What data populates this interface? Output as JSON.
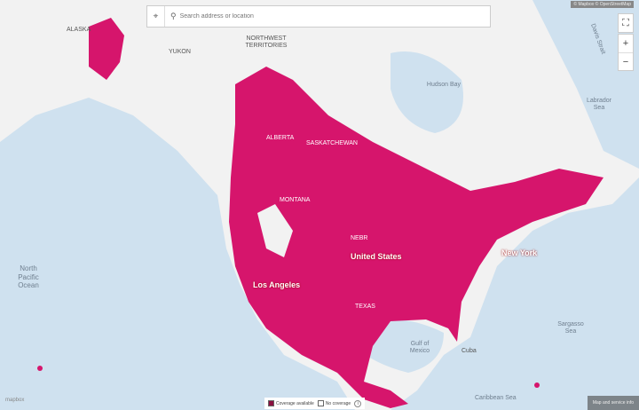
{
  "search": {
    "placeholder": "Search address or location"
  },
  "attribution": "© Mapbox © OpenStreetMap",
  "controls": {
    "fullscreen": "⛶",
    "zoom_in": "+",
    "zoom_out": "−"
  },
  "legend": {
    "coverage": "Coverage available",
    "no_coverage": "No coverage",
    "info_icon": "i"
  },
  "info_button": "Map and service info",
  "logo": "mapbox",
  "colors": {
    "coverage": "#d6156c",
    "ocean": "#cfe1ef",
    "land": "#f2f2f2"
  },
  "labels": {
    "alaska": "ALASKA",
    "yukon": "YUKON",
    "nwt": "NORTHWEST TERRITORIES",
    "alberta": "ALBERTA",
    "saskatchewan": "SASKATCHEWAN",
    "hudson": "Hudson Bay",
    "labrador": "Labrador Sea",
    "davis": "Davis Strait",
    "pacific": "North Pacific Ocean",
    "sargasso": "Sargasso Sea",
    "gulf": "Gulf of Mexico",
    "caribbean": "Caribbean Sea",
    "us": "United States",
    "la": "Los Angeles",
    "ny": "New York",
    "texas": "TEXAS",
    "montana": "MONTANA",
    "nebr": "NEBR",
    "cuba": "Cuba"
  }
}
